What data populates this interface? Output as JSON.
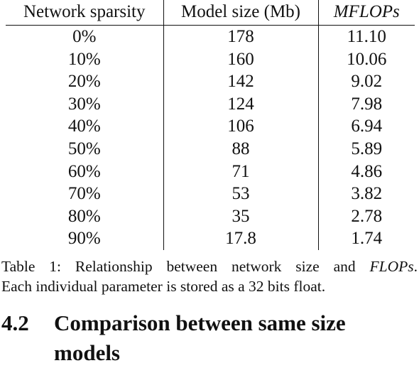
{
  "table": {
    "headers": [
      "Network sparsity",
      "Model size (Mb)",
      "MFLOPs"
    ],
    "rows": [
      [
        "0%",
        "178",
        "11.10"
      ],
      [
        "10%",
        "160",
        "10.06"
      ],
      [
        "20%",
        "142",
        "9.02"
      ],
      [
        "30%",
        "124",
        "7.98"
      ],
      [
        "40%",
        "106",
        "6.94"
      ],
      [
        "50%",
        "88",
        "5.89"
      ],
      [
        "60%",
        "71",
        "4.86"
      ],
      [
        "70%",
        "53",
        "3.82"
      ],
      [
        "80%",
        "35",
        "2.78"
      ],
      [
        "90%",
        "17.8",
        "1.74"
      ]
    ]
  },
  "caption": {
    "label": "Table 1:",
    "text_before": "Relationship between network size and",
    "emph": "FLOPs",
    "text_after": ".",
    "line2": "Each individual parameter is stored as a 32 bits float."
  },
  "section": {
    "number": "4.2",
    "title_line1": "Comparison between same size",
    "title_line2": "models"
  }
}
